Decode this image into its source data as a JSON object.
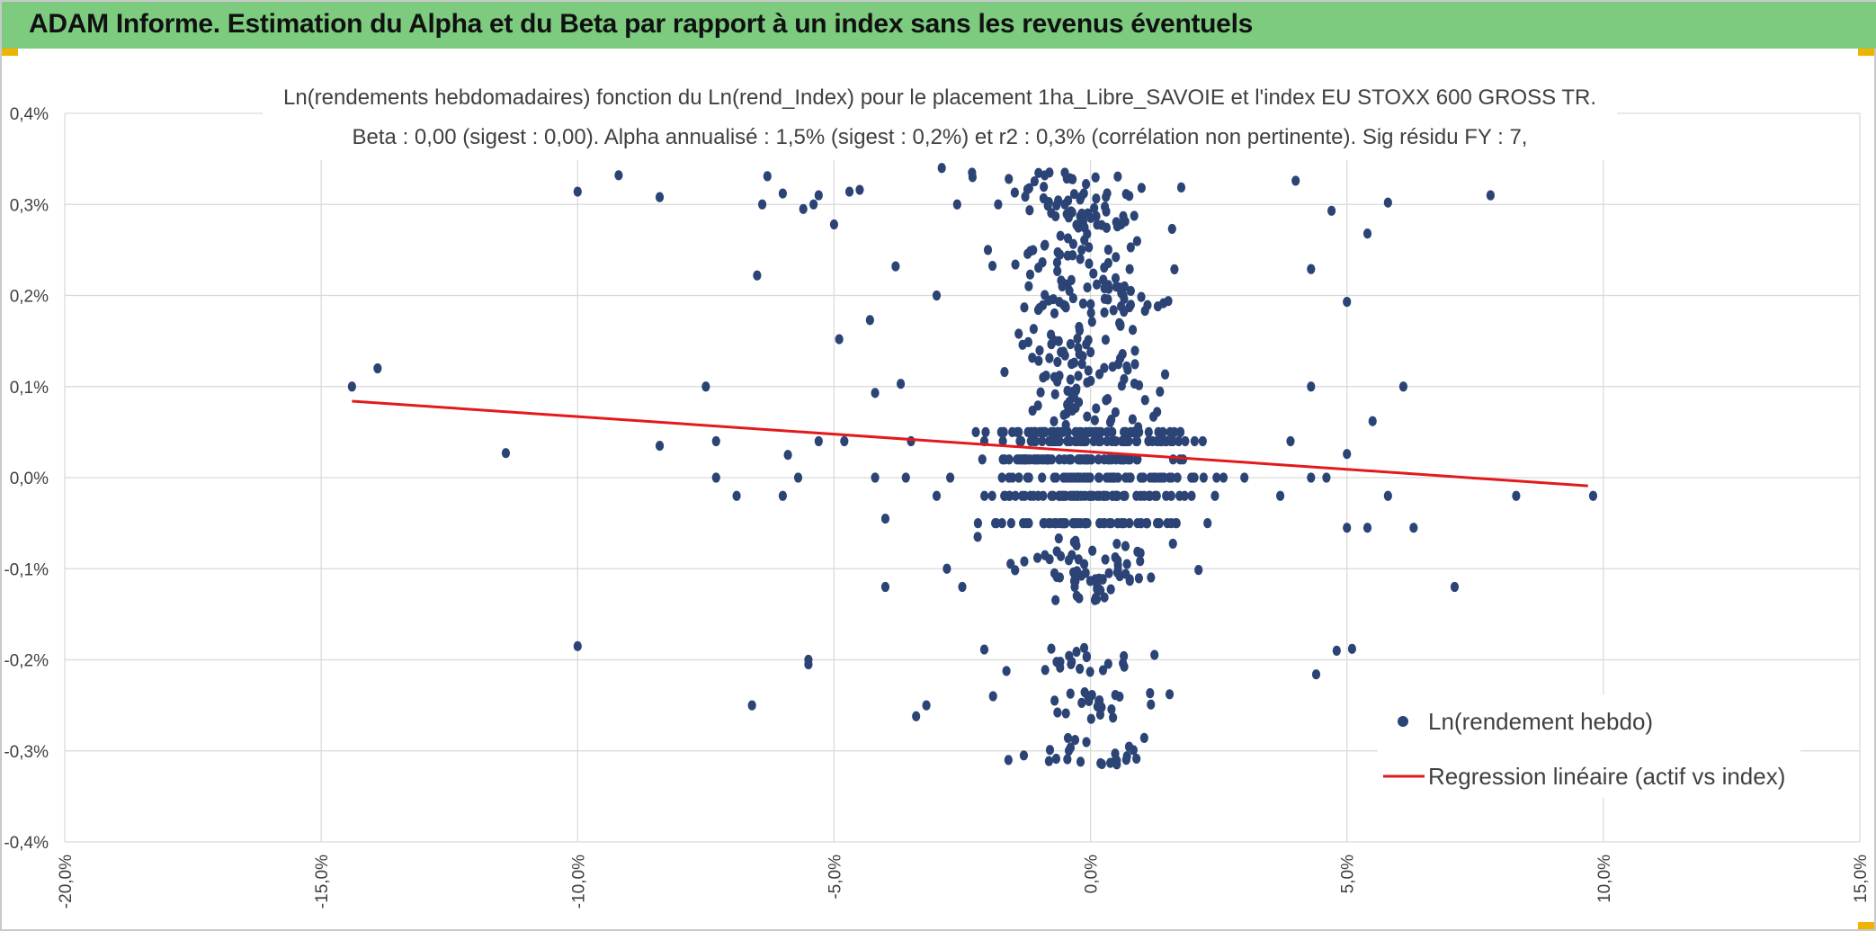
{
  "header": {
    "title": "ADAM Informe. Estimation du Alpha et du Beta par rapport à un index sans les revenus éventuels"
  },
  "colors": {
    "header_bg": "#7ccb7f",
    "points": "#2b4475",
    "regression": "#e31a1c",
    "grid": "#d9d9d9",
    "text": "#404040"
  },
  "chart_data": {
    "type": "scatter",
    "title": "Ln(rendements hebdomadaires) fonction du Ln(rend_Index) pour le placement 1ha_Libre_SAVOIE et l'index EU STOXX 600 GROSS TR.",
    "subtitle": "Beta : 0,00 (sigest : 0,00). Alpha annualisé : 1,5% (sigest : 0,2%) et r2 : 0,3% (corrélation non pertinente). Sig résidu FY : 7,",
    "xlabel": "",
    "ylabel": "",
    "xlim": [
      -20,
      15
    ],
    "ylim": [
      -0.4,
      0.4
    ],
    "x_ticks": [
      "-20,0%",
      "-15,0%",
      "-10,0%",
      "-5,0%",
      "0,0%",
      "5,0%",
      "10,0%",
      "15,0%"
    ],
    "y_ticks": [
      "0,4%",
      "0,3%",
      "0,2%",
      "0,1%",
      "0,0%",
      "-0,1%",
      "-0,2%",
      "-0,3%",
      "-0,4%"
    ],
    "grid": true,
    "legend_position": "bottom-right",
    "series": [
      {
        "name": "Ln(rendement hebdo)",
        "kind": "scatter",
        "points": [
          [
            -14.4,
            0.1
          ],
          [
            -13.9,
            0.12
          ],
          [
            -11.4,
            0.027
          ],
          [
            -10.0,
            0.314
          ],
          [
            -10.0,
            -0.185
          ],
          [
            -9.2,
            0.332
          ],
          [
            -8.4,
            0.035
          ],
          [
            -8.4,
            0.308
          ],
          [
            -7.5,
            0.1
          ],
          [
            -7.3,
            0.04
          ],
          [
            -7.3,
            0.0
          ],
          [
            -6.9,
            -0.02
          ],
          [
            -6.6,
            -0.25
          ],
          [
            -6.5,
            0.222
          ],
          [
            -6.4,
            0.3
          ],
          [
            -6.3,
            0.331
          ],
          [
            -6.0,
            0.312
          ],
          [
            -6.0,
            -0.02
          ],
          [
            -5.9,
            0.025
          ],
          [
            -5.7,
            0.0
          ],
          [
            -5.6,
            0.295
          ],
          [
            -5.5,
            -0.205
          ],
          [
            -5.5,
            -0.2
          ],
          [
            -5.4,
            0.3
          ],
          [
            -5.3,
            0.31
          ],
          [
            -5.3,
            0.04
          ],
          [
            -5.0,
            0.278
          ],
          [
            -4.9,
            0.152
          ],
          [
            -4.8,
            0.04
          ],
          [
            -4.7,
            0.314
          ],
          [
            -4.5,
            0.316
          ],
          [
            -4.3,
            0.173
          ],
          [
            -4.2,
            0.093
          ],
          [
            -4.2,
            0.0
          ],
          [
            -4.0,
            -0.045
          ],
          [
            -4.0,
            -0.12
          ],
          [
            -3.8,
            0.232
          ],
          [
            -3.7,
            0.103
          ],
          [
            -3.6,
            0.0
          ],
          [
            -3.5,
            0.04
          ],
          [
            -3.4,
            -0.262
          ],
          [
            -3.2,
            -0.25
          ],
          [
            -3.0,
            0.2
          ],
          [
            -3.0,
            -0.02
          ],
          [
            -2.9,
            0.34
          ],
          [
            -2.8,
            -0.1
          ],
          [
            -2.6,
            0.3
          ],
          [
            -2.5,
            -0.12
          ],
          [
            -2.3,
            0.33
          ],
          [
            -2.2,
            -0.065
          ],
          [
            -2.0,
            0.25
          ],
          [
            -1.9,
            -0.24
          ],
          [
            -1.8,
            0.3
          ],
          [
            -1.6,
            -0.31
          ],
          [
            -1.4,
            0.158
          ],
          [
            -1.3,
            -0.305
          ],
          [
            -1.1,
            0.04
          ],
          [
            -0.8,
            0.335
          ],
          [
            -0.5,
            0.3
          ],
          [
            -0.3,
            -0.288
          ],
          [
            4.0,
            0.326
          ],
          [
            4.3,
            0.229
          ],
          [
            4.3,
            0.1
          ],
          [
            4.4,
            -0.216
          ],
          [
            4.7,
            0.293
          ],
          [
            4.8,
            -0.19
          ],
          [
            5.0,
            0.193
          ],
          [
            5.0,
            0.026
          ],
          [
            5.0,
            -0.055
          ],
          [
            5.1,
            -0.188
          ],
          [
            5.4,
            -0.055
          ],
          [
            5.4,
            0.268
          ],
          [
            5.5,
            0.062
          ],
          [
            5.8,
            0.302
          ],
          [
            5.8,
            -0.02
          ],
          [
            6.1,
            0.1
          ],
          [
            6.3,
            -0.055
          ],
          [
            7.1,
            -0.12
          ],
          [
            7.8,
            0.31
          ],
          [
            8.3,
            -0.02
          ],
          [
            9.8,
            -0.02
          ],
          [
            4.6,
            0.0
          ],
          [
            4.3,
            0.0
          ],
          [
            3.9,
            0.04
          ],
          [
            3.7,
            -0.02
          ]
        ],
        "dense_cluster": {
          "x_range": [
            -4.0,
            4.0
          ],
          "y_levels": [
            -0.3,
            -0.25,
            -0.2,
            -0.12,
            -0.1,
            -0.08,
            -0.05,
            -0.02,
            0.0,
            0.02,
            0.04,
            0.05,
            0.07,
            0.1,
            0.12,
            0.15,
            0.18,
            0.2,
            0.22,
            0.25,
            0.28,
            0.3,
            0.32
          ]
        }
      },
      {
        "name": "Regression linéaire (actif vs index)",
        "kind": "line",
        "points": [
          [
            -14.4,
            0.084
          ],
          [
            9.7,
            -0.009
          ]
        ]
      }
    ]
  }
}
